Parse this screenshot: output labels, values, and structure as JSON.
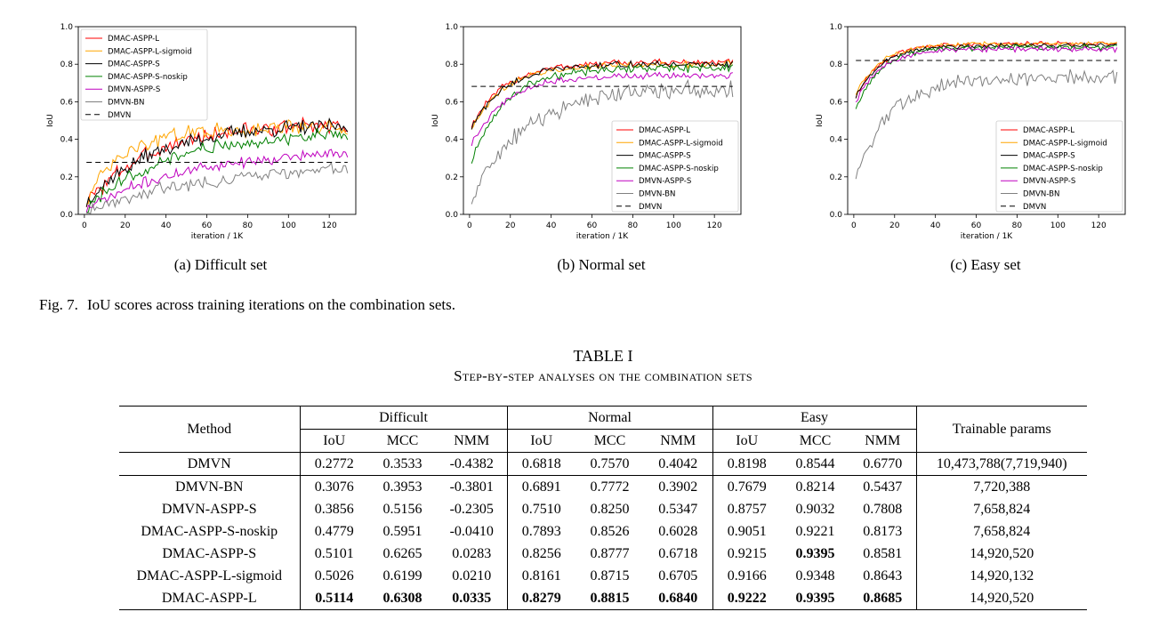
{
  "chart_data": [
    {
      "type": "line",
      "id": "difficult",
      "caption": "(a) Difficult set",
      "xlabel": "iteration / 1K",
      "ylabel": "IoU",
      "xlim": [
        -3,
        133
      ],
      "ylim": [
        0.0,
        1.0
      ],
      "xticks": [
        "0",
        "20",
        "40",
        "60",
        "80",
        "100",
        "120"
      ],
      "yticks": [
        "0.0",
        "0.2",
        "0.4",
        "0.6",
        "0.8",
        "1.0"
      ],
      "legend_position": "top-left",
      "series": [
        {
          "name": "DMAC-ASPP-L",
          "color": "#ff0000",
          "dash": "",
          "start": 0.05,
          "final": 0.49,
          "rate": 0.03,
          "noise": 0.035
        },
        {
          "name": "DMAC-ASPP-L-sigmoid",
          "color": "#ffa500",
          "dash": "",
          "start": 0.06,
          "final": 0.46,
          "rate": 0.05,
          "noise": 0.035
        },
        {
          "name": "DMAC-ASPP-S",
          "color": "#000000",
          "dash": "",
          "start": 0.05,
          "final": 0.48,
          "rate": 0.03,
          "noise": 0.035
        },
        {
          "name": "DMAC-ASPP-S-noskip",
          "color": "#008000",
          "dash": "",
          "start": 0.02,
          "final": 0.44,
          "rate": 0.025,
          "noise": 0.03
        },
        {
          "name": "DMVN-ASPP-S",
          "color": "#bf00bf",
          "dash": "",
          "start": 0.02,
          "final": 0.35,
          "rate": 0.02,
          "noise": 0.025
        },
        {
          "name": "DMVN-BN",
          "color": "#808080",
          "dash": "",
          "start": 0.02,
          "final": 0.28,
          "rate": 0.015,
          "noise": 0.03
        },
        {
          "name": "DMVN",
          "color": "#000000",
          "dash": "6,4",
          "const": 0.2772,
          "x0": 1,
          "x1": 129
        }
      ]
    },
    {
      "type": "line",
      "id": "normal",
      "caption": "(b) Normal set",
      "xlabel": "iteration / 1K",
      "ylabel": "IoU",
      "xlim": [
        -3,
        133
      ],
      "ylim": [
        0.0,
        1.0
      ],
      "xticks": [
        "0",
        "20",
        "40",
        "60",
        "80",
        "100",
        "120"
      ],
      "yticks": [
        "0.0",
        "0.2",
        "0.4",
        "0.6",
        "0.8",
        "1.0"
      ],
      "legend_position": "bottom-right",
      "series": [
        {
          "name": "DMAC-ASPP-L",
          "color": "#ff0000",
          "dash": "",
          "start": 0.45,
          "final": 0.81,
          "rate": 0.06,
          "noise": 0.015
        },
        {
          "name": "DMAC-ASPP-L-sigmoid",
          "color": "#ffa500",
          "dash": "",
          "start": 0.44,
          "final": 0.8,
          "rate": 0.06,
          "noise": 0.015
        },
        {
          "name": "DMAC-ASPP-S",
          "color": "#000000",
          "dash": "",
          "start": 0.44,
          "final": 0.8,
          "rate": 0.06,
          "noise": 0.015
        },
        {
          "name": "DMAC-ASPP-S-noskip",
          "color": "#008000",
          "dash": "",
          "start": 0.25,
          "final": 0.78,
          "rate": 0.06,
          "noise": 0.018
        },
        {
          "name": "DMVN-ASPP-S",
          "color": "#bf00bf",
          "dash": "",
          "start": 0.35,
          "final": 0.74,
          "rate": 0.06,
          "noise": 0.015
        },
        {
          "name": "DMVN-BN",
          "color": "#808080",
          "dash": "",
          "start": 0.05,
          "final": 0.67,
          "rate": 0.04,
          "noise": 0.04
        },
        {
          "name": "DMVN",
          "color": "#000000",
          "dash": "6,4",
          "const": 0.6818,
          "x0": 1,
          "x1": 129
        }
      ]
    },
    {
      "type": "line",
      "id": "easy",
      "caption": "(c) Easy set",
      "xlabel": "iteration / 1K",
      "ylabel": "IoU",
      "xlim": [
        -3,
        133
      ],
      "ylim": [
        0.0,
        1.0
      ],
      "xticks": [
        "0",
        "20",
        "40",
        "60",
        "80",
        "100",
        "120"
      ],
      "yticks": [
        "0.0",
        "0.2",
        "0.4",
        "0.6",
        "0.8",
        "1.0"
      ],
      "legend_position": "bottom-right",
      "series": [
        {
          "name": "DMAC-ASPP-L",
          "color": "#ff0000",
          "dash": "",
          "start": 0.6,
          "final": 0.91,
          "rate": 0.08,
          "noise": 0.01
        },
        {
          "name": "DMAC-ASPP-L-sigmoid",
          "color": "#ffa500",
          "dash": "",
          "start": 0.62,
          "final": 0.91,
          "rate": 0.08,
          "noise": 0.01
        },
        {
          "name": "DMAC-ASPP-S",
          "color": "#000000",
          "dash": "",
          "start": 0.6,
          "final": 0.9,
          "rate": 0.08,
          "noise": 0.01
        },
        {
          "name": "DMAC-ASPP-S-noskip",
          "color": "#008000",
          "dash": "",
          "start": 0.54,
          "final": 0.89,
          "rate": 0.08,
          "noise": 0.012
        },
        {
          "name": "DMVN-ASPP-S",
          "color": "#bf00bf",
          "dash": "",
          "start": 0.58,
          "final": 0.88,
          "rate": 0.08,
          "noise": 0.012
        },
        {
          "name": "DMVN-BN",
          "color": "#808080",
          "dash": "",
          "start": 0.17,
          "final": 0.73,
          "rate": 0.06,
          "noise": 0.035
        },
        {
          "name": "DMVN",
          "color": "#000000",
          "dash": "6,4",
          "const": 0.8198,
          "x0": 1,
          "x1": 129
        }
      ]
    }
  ],
  "figure": {
    "label": "Fig. 7.",
    "text": "IoU scores across training iterations on the combination sets."
  },
  "table": {
    "title": "TABLE I",
    "subtitle": "Step-by-step analyses on the combination sets",
    "header": {
      "method": "Method",
      "groups": [
        "Difficult",
        "Normal",
        "Easy"
      ],
      "metrics": [
        "IoU",
        "MCC",
        "NMM"
      ],
      "params": "Trainable params"
    },
    "rows": [
      {
        "method": "DMVN",
        "values": [
          "0.2772",
          "0.3533",
          "-0.4382",
          "0.6818",
          "0.7570",
          "0.4042",
          "0.8198",
          "0.8544",
          "0.6770"
        ],
        "params": "10,473,788(7,719,940)",
        "bold": []
      },
      {
        "method": "DMVN-BN",
        "values": [
          "0.3076",
          "0.3953",
          "-0.3801",
          "0.6891",
          "0.7772",
          "0.3902",
          "0.7679",
          "0.8214",
          "0.5437"
        ],
        "params": "7,720,388",
        "bold": []
      },
      {
        "method": "DMVN-ASPP-S",
        "values": [
          "0.3856",
          "0.5156",
          "-0.2305",
          "0.7510",
          "0.8250",
          "0.5347",
          "0.8757",
          "0.9032",
          "0.7808"
        ],
        "params": "7,658,824",
        "bold": []
      },
      {
        "method": "DMAC-ASPP-S-noskip",
        "values": [
          "0.4779",
          "0.5951",
          "-0.0410",
          "0.7893",
          "0.8526",
          "0.6028",
          "0.9051",
          "0.9221",
          "0.8173"
        ],
        "params": "7,658,824",
        "bold": []
      },
      {
        "method": "DMAC-ASPP-S",
        "values": [
          "0.5101",
          "0.6265",
          "0.0283",
          "0.8256",
          "0.8777",
          "0.6718",
          "0.9215",
          "0.9395",
          "0.8581"
        ],
        "params": "14,920,520",
        "bold": [
          7
        ]
      },
      {
        "method": "DMAC-ASPP-L-sigmoid",
        "values": [
          "0.5026",
          "0.6199",
          "0.0210",
          "0.8161",
          "0.8715",
          "0.6705",
          "0.9166",
          "0.9348",
          "0.8643"
        ],
        "params": "14,920,132",
        "bold": []
      },
      {
        "method": "DMAC-ASPP-L",
        "values": [
          "0.5114",
          "0.6308",
          "0.0335",
          "0.8279",
          "0.8815",
          "0.6840",
          "0.9222",
          "0.9395",
          "0.8685"
        ],
        "params": "14,920,520",
        "bold": [
          0,
          1,
          2,
          3,
          4,
          5,
          6,
          7,
          8
        ]
      }
    ]
  }
}
